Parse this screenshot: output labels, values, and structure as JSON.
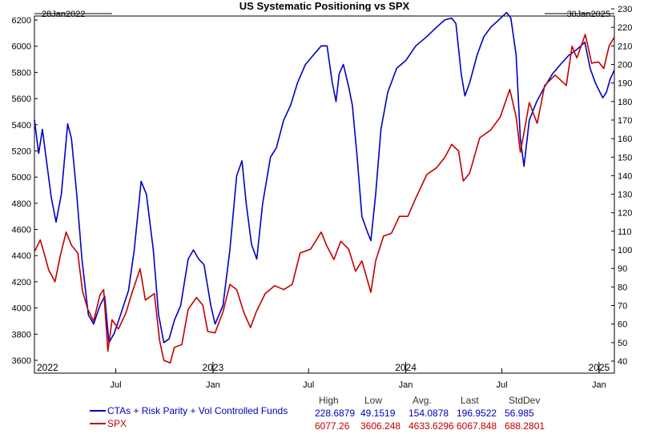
{
  "chart_data": {
    "type": "line",
    "title": "US Systematic Positioning vs SPX",
    "start_date_label": "28Jan2022",
    "end_date_label": "30Jan2025",
    "grid": false,
    "legend_placement": "bottom-left",
    "left_axis": {
      "ylim": [
        3600,
        6200
      ],
      "ticks": [
        "3600",
        "3800",
        "4000",
        "4200",
        "4400",
        "4600",
        "4800",
        "5000",
        "5200",
        "5400",
        "5600",
        "5800",
        "6000",
        "6200"
      ]
    },
    "right_axis": {
      "ylim": [
        40,
        230
      ],
      "ticks": [
        "40",
        "50",
        "60",
        "70",
        "80",
        "90",
        "100",
        "110",
        "120",
        "130",
        "140",
        "150",
        "160",
        "170",
        "180",
        "190",
        "200",
        "210",
        "220",
        "230"
      ]
    },
    "x_month_labels": [
      "Jul",
      "Jan",
      "Jul",
      "Jan",
      "Jul",
      "Jan"
    ],
    "x_year_labels": [
      "2022",
      "2023",
      "2024",
      "2025"
    ],
    "stats_headers": [
      "High",
      "Low",
      "Avg.",
      "Last",
      "StdDev"
    ],
    "series": [
      {
        "name": "CTAs + Risk Parity + Vol Controlled Funds",
        "axis": "right",
        "color": "#0000c0",
        "stats": [
          "228.6879",
          "49.1519",
          "154.0878",
          "196.9522",
          "56.985"
        ],
        "points": [
          [
            "2022-01-28",
            170
          ],
          [
            "2022-02-05",
            152
          ],
          [
            "2022-02-12",
            165
          ],
          [
            "2022-03-01",
            128
          ],
          [
            "2022-03-10",
            115
          ],
          [
            "2022-03-20",
            130
          ],
          [
            "2022-04-01",
            168
          ],
          [
            "2022-04-08",
            160
          ],
          [
            "2022-04-18",
            130
          ],
          [
            "2022-04-28",
            95
          ],
          [
            "2022-05-10",
            65
          ],
          [
            "2022-05-20",
            60
          ],
          [
            "2022-06-01",
            70
          ],
          [
            "2022-06-10",
            75
          ],
          [
            "2022-06-18",
            50
          ],
          [
            "2022-06-28",
            55
          ],
          [
            "2022-07-10",
            65
          ],
          [
            "2022-07-25",
            78
          ],
          [
            "2022-08-05",
            100
          ],
          [
            "2022-08-18",
            137
          ],
          [
            "2022-08-28",
            130
          ],
          [
            "2022-09-10",
            100
          ],
          [
            "2022-09-20",
            65
          ],
          [
            "2022-09-30",
            50
          ],
          [
            "2022-10-10",
            52
          ],
          [
            "2022-10-20",
            62
          ],
          [
            "2022-11-01",
            70
          ],
          [
            "2022-11-15",
            95
          ],
          [
            "2022-11-25",
            100
          ],
          [
            "2022-12-05",
            95
          ],
          [
            "2022-12-15",
            92
          ],
          [
            "2022-12-28",
            70
          ],
          [
            "2023-01-05",
            60
          ],
          [
            "2023-01-20",
            70
          ],
          [
            "2023-02-02",
            100
          ],
          [
            "2023-02-15",
            140
          ],
          [
            "2023-02-25",
            148
          ],
          [
            "2023-03-05",
            125
          ],
          [
            "2023-03-15",
            103
          ],
          [
            "2023-03-25",
            95
          ],
          [
            "2023-04-05",
            125
          ],
          [
            "2023-04-20",
            150
          ],
          [
            "2023-05-01",
            155
          ],
          [
            "2023-05-15",
            170
          ],
          [
            "2023-05-28",
            178
          ],
          [
            "2023-06-10",
            190
          ],
          [
            "2023-06-25",
            200
          ],
          [
            "2023-07-10",
            205
          ],
          [
            "2023-07-25",
            210
          ],
          [
            "2023-08-05",
            210
          ],
          [
            "2023-08-15",
            190
          ],
          [
            "2023-08-22",
            180
          ],
          [
            "2023-08-28",
            195
          ],
          [
            "2023-09-05",
            200
          ],
          [
            "2023-09-15",
            188
          ],
          [
            "2023-09-22",
            178
          ],
          [
            "2023-10-01",
            150
          ],
          [
            "2023-10-10",
            118
          ],
          [
            "2023-10-20",
            110
          ],
          [
            "2023-10-27",
            105
          ],
          [
            "2023-11-05",
            130
          ],
          [
            "2023-11-15",
            165
          ],
          [
            "2023-11-28",
            185
          ],
          [
            "2023-12-15",
            198
          ],
          [
            "2024-01-01",
            202
          ],
          [
            "2024-01-20",
            210
          ],
          [
            "2024-02-10",
            215
          ],
          [
            "2024-02-28",
            220
          ],
          [
            "2024-03-15",
            224
          ],
          [
            "2024-03-28",
            225
          ],
          [
            "2024-04-05",
            222
          ],
          [
            "2024-04-15",
            195
          ],
          [
            "2024-04-22",
            183
          ],
          [
            "2024-05-01",
            190
          ],
          [
            "2024-05-15",
            205
          ],
          [
            "2024-05-28",
            215
          ],
          [
            "2024-06-10",
            220
          ],
          [
            "2024-06-25",
            224
          ],
          [
            "2024-07-10",
            228
          ],
          [
            "2024-07-18",
            225
          ],
          [
            "2024-07-28",
            205
          ],
          [
            "2024-08-05",
            160
          ],
          [
            "2024-08-12",
            145
          ],
          [
            "2024-08-22",
            170
          ],
          [
            "2024-09-05",
            180
          ],
          [
            "2024-09-20",
            188
          ],
          [
            "2024-10-05",
            195
          ],
          [
            "2024-10-20",
            200
          ],
          [
            "2024-11-05",
            205
          ],
          [
            "2024-11-20",
            208
          ],
          [
            "2024-12-05",
            212
          ],
          [
            "2024-12-15",
            198
          ],
          [
            "2024-12-25",
            190
          ],
          [
            "2025-01-08",
            182
          ],
          [
            "2025-01-15",
            185
          ],
          [
            "2025-01-22",
            192
          ],
          [
            "2025-01-30",
            197
          ]
        ]
      },
      {
        "name": "SPX",
        "axis": "left",
        "color": "#c00000",
        "stats": [
          "6077.26",
          "3606.248",
          "4633.6296",
          "6067.848",
          "688.2801"
        ],
        "points": [
          [
            "2022-01-28",
            4430
          ],
          [
            "2022-02-08",
            4520
          ],
          [
            "2022-02-18",
            4380
          ],
          [
            "2022-02-24",
            4290
          ],
          [
            "2022-03-08",
            4200
          ],
          [
            "2022-03-18",
            4400
          ],
          [
            "2022-03-29",
            4580
          ],
          [
            "2022-04-08",
            4480
          ],
          [
            "2022-04-20",
            4420
          ],
          [
            "2022-04-29",
            4130
          ],
          [
            "2022-05-09",
            3990
          ],
          [
            "2022-05-20",
            3900
          ],
          [
            "2022-06-01",
            4100
          ],
          [
            "2022-06-08",
            4140
          ],
          [
            "2022-06-16",
            3670
          ],
          [
            "2022-06-24",
            3910
          ],
          [
            "2022-07-06",
            3840
          ],
          [
            "2022-07-20",
            3960
          ],
          [
            "2022-08-01",
            4120
          ],
          [
            "2022-08-16",
            4300
          ],
          [
            "2022-08-26",
            4060
          ],
          [
            "2022-09-12",
            4110
          ],
          [
            "2022-09-22",
            3750
          ],
          [
            "2022-09-30",
            3600
          ],
          [
            "2022-10-12",
            3580
          ],
          [
            "2022-10-20",
            3700
          ],
          [
            "2022-11-03",
            3720
          ],
          [
            "2022-11-15",
            3990
          ],
          [
            "2022-12-01",
            4080
          ],
          [
            "2022-12-13",
            4020
          ],
          [
            "2022-12-22",
            3820
          ],
          [
            "2023-01-05",
            3810
          ],
          [
            "2023-01-20",
            3970
          ],
          [
            "2023-02-02",
            4180
          ],
          [
            "2023-02-15",
            4140
          ],
          [
            "2023-03-01",
            3960
          ],
          [
            "2023-03-13",
            3850
          ],
          [
            "2023-03-24",
            3970
          ],
          [
            "2023-04-10",
            4110
          ],
          [
            "2023-04-28",
            4170
          ],
          [
            "2023-05-15",
            4140
          ],
          [
            "2023-05-31",
            4180
          ],
          [
            "2023-06-15",
            4420
          ],
          [
            "2023-07-05",
            4450
          ],
          [
            "2023-07-25",
            4580
          ],
          [
            "2023-08-05",
            4470
          ],
          [
            "2023-08-18",
            4370
          ],
          [
            "2023-08-31",
            4510
          ],
          [
            "2023-09-15",
            4450
          ],
          [
            "2023-09-28",
            4280
          ],
          [
            "2023-10-10",
            4360
          ],
          [
            "2023-10-27",
            4120
          ],
          [
            "2023-11-05",
            4360
          ],
          [
            "2023-11-20",
            4550
          ],
          [
            "2023-12-05",
            4570
          ],
          [
            "2023-12-20",
            4700
          ],
          [
            "2024-01-05",
            4700
          ],
          [
            "2024-01-20",
            4840
          ],
          [
            "2024-02-10",
            5020
          ],
          [
            "2024-02-28",
            5070
          ],
          [
            "2024-03-15",
            5150
          ],
          [
            "2024-03-28",
            5250
          ],
          [
            "2024-04-10",
            5200
          ],
          [
            "2024-04-19",
            4970
          ],
          [
            "2024-05-01",
            5030
          ],
          [
            "2024-05-20",
            5300
          ],
          [
            "2024-06-10",
            5360
          ],
          [
            "2024-06-28",
            5460
          ],
          [
            "2024-07-10",
            5600
          ],
          [
            "2024-07-16",
            5670
          ],
          [
            "2024-07-28",
            5460
          ],
          [
            "2024-08-05",
            5190
          ],
          [
            "2024-08-12",
            5340
          ],
          [
            "2024-08-22",
            5570
          ],
          [
            "2024-09-06",
            5410
          ],
          [
            "2024-09-20",
            5700
          ],
          [
            "2024-10-10",
            5780
          ],
          [
            "2024-10-31",
            5700
          ],
          [
            "2024-11-11",
            6000
          ],
          [
            "2024-11-20",
            5910
          ],
          [
            "2024-12-06",
            6090
          ],
          [
            "2024-12-18",
            5870
          ],
          [
            "2024-12-31",
            5880
          ],
          [
            "2025-01-10",
            5830
          ],
          [
            "2025-01-20",
            6000
          ],
          [
            "2025-01-30",
            6070
          ]
        ]
      }
    ]
  }
}
